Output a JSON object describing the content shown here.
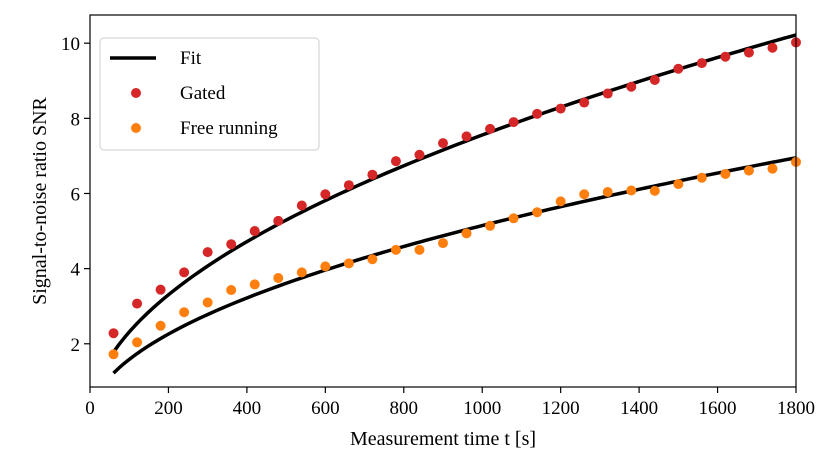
{
  "chart_data": {
    "type": "scatter",
    "title": "",
    "xlabel": "Measurement time t [s]",
    "ylabel": "Signal-to-noise ratio SNR",
    "xlim": [
      0,
      1800
    ],
    "ylim": [
      0.85,
      10.75
    ],
    "xticks": [
      0,
      200,
      400,
      600,
      800,
      1000,
      1200,
      1400,
      1600,
      1800
    ],
    "yticks": [
      2,
      4,
      6,
      8,
      10
    ],
    "legend_position": "top-left",
    "colors": {
      "gated": "#d62728",
      "free": "#ff7f0e",
      "fit": "#000000"
    },
    "legend": [
      {
        "label": "Fit",
        "kind": "line",
        "color": "#000000"
      },
      {
        "label": "Gated",
        "kind": "marker",
        "color": "#d62728"
      },
      {
        "label": "Free running",
        "kind": "marker",
        "color": "#ff7f0e"
      }
    ],
    "x": [
      60,
      120,
      180,
      240,
      300,
      360,
      420,
      480,
      540,
      600,
      660,
      720,
      780,
      840,
      900,
      960,
      1020,
      1080,
      1140,
      1200,
      1260,
      1320,
      1380,
      1440,
      1500,
      1560,
      1620,
      1680,
      1740,
      1800
    ],
    "series": [
      {
        "name": "Gated",
        "color": "#d62728",
        "values": [
          2.28,
          3.07,
          3.44,
          3.9,
          4.44,
          4.65,
          5.0,
          5.27,
          5.68,
          5.98,
          6.22,
          6.5,
          6.86,
          7.03,
          7.34,
          7.52,
          7.72,
          7.9,
          8.12,
          8.26,
          8.42,
          8.66,
          8.84,
          9.02,
          9.32,
          9.47,
          9.64,
          9.75,
          9.88,
          10.02
        ]
      },
      {
        "name": "Free running",
        "color": "#ff7f0e",
        "values": [
          1.72,
          2.04,
          2.48,
          2.84,
          3.1,
          3.43,
          3.58,
          3.75,
          3.9,
          4.06,
          4.14,
          4.25,
          4.5,
          4.5,
          4.68,
          4.94,
          5.14,
          5.34,
          5.5,
          5.79,
          5.98,
          6.04,
          6.08,
          6.07,
          6.25,
          6.42,
          6.52,
          6.61,
          6.66,
          6.84
        ]
      }
    ],
    "fits": [
      {
        "name": "Fit (Gated)",
        "x_start": 60,
        "x_end": 1800,
        "y_start": 1.78,
        "y_end": 10.22
      },
      {
        "name": "Fit (Free running)",
        "x_start": 60,
        "x_end": 1800,
        "y_start": 1.22,
        "y_end": 6.95
      }
    ]
  }
}
